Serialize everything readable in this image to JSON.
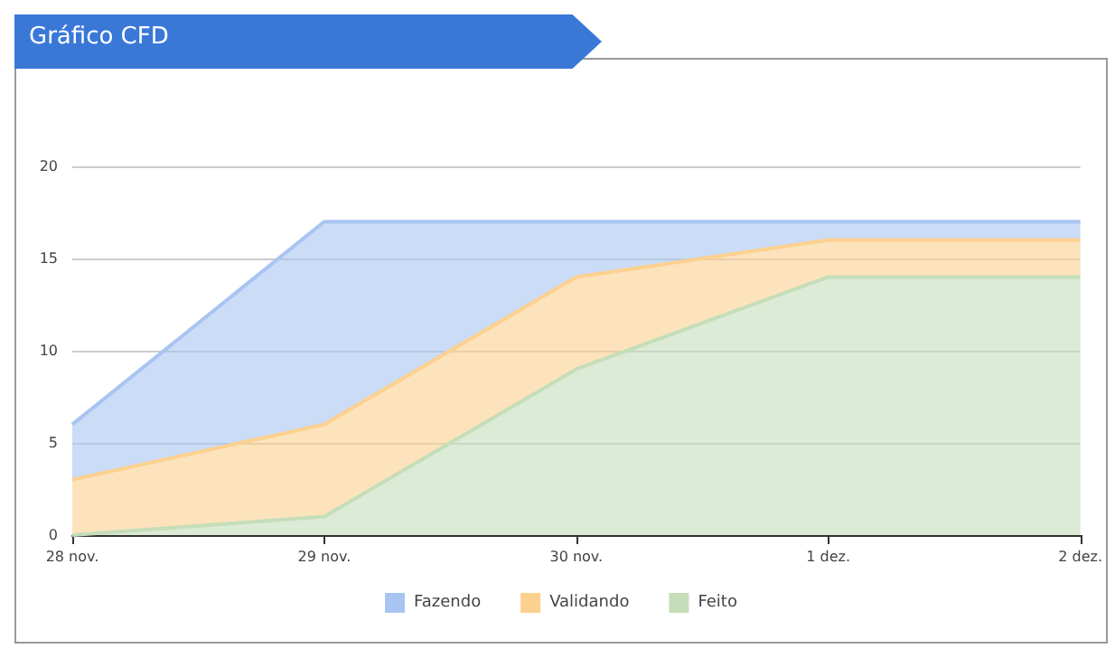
{
  "chart_data": {
    "type": "area",
    "title": "Gráfico CFD",
    "categories": [
      "28 nov.",
      "29 nov.",
      "30 nov.",
      "1 dez.",
      "2 dez."
    ],
    "stacked": true,
    "series": [
      {
        "name": "Feito",
        "color": "#c5deb9",
        "values": [
          0,
          1,
          9,
          14,
          14
        ]
      },
      {
        "name": "Validando",
        "color": "#fcd18f",
        "values": [
          3,
          5,
          5,
          2,
          2
        ]
      },
      {
        "name": "Fazendo",
        "color": "#a8c4f2",
        "values": [
          3,
          11,
          3,
          1,
          1
        ]
      }
    ],
    "ylim": [
      0,
      20
    ],
    "yticks": [
      0,
      5,
      10,
      15,
      20
    ],
    "grid": "y",
    "legend": "bottom",
    "marker": "none"
  }
}
